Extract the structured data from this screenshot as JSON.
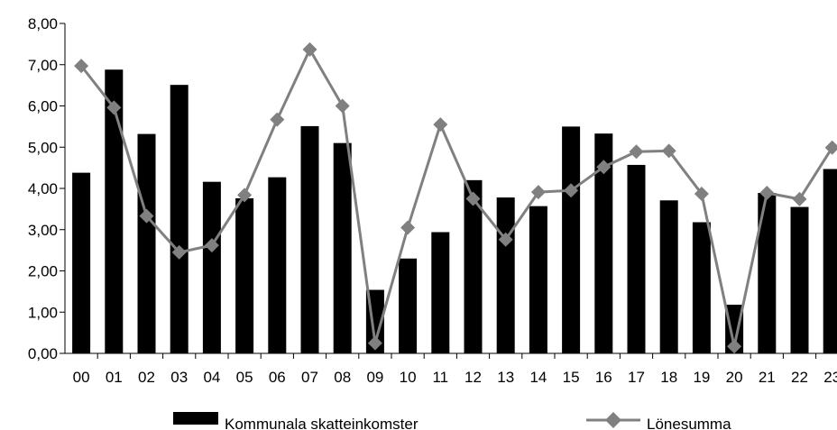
{
  "chart_data": {
    "type": "bar",
    "categories": [
      "00",
      "01",
      "02",
      "03",
      "04",
      "05",
      "06",
      "07",
      "08",
      "09",
      "10",
      "11",
      "12",
      "13",
      "14",
      "15",
      "16",
      "17",
      "18",
      "19",
      "20",
      "21",
      "22",
      "23"
    ],
    "series": [
      {
        "name": "Kommunala skatteinkomster",
        "type": "bar",
        "color": "#000000",
        "values": [
          4.38,
          6.88,
          5.32,
          6.51,
          4.16,
          3.76,
          4.27,
          5.51,
          5.1,
          1.54,
          2.3,
          2.94,
          4.2,
          3.78,
          3.57,
          5.5,
          5.33,
          4.57,
          3.71,
          3.18,
          1.18,
          3.89,
          3.55,
          4.47
        ]
      },
      {
        "name": "Lönesumma",
        "type": "line",
        "color": "#808080",
        "marker": "diamond",
        "values": [
          6.97,
          5.96,
          3.33,
          2.45,
          2.62,
          3.84,
          5.67,
          7.37,
          6.0,
          0.25,
          3.05,
          5.55,
          3.75,
          2.76,
          3.91,
          3.95,
          4.52,
          4.89,
          4.91,
          3.87,
          0.17,
          3.89,
          3.74,
          4.99
        ]
      }
    ],
    "ylim": [
      0,
      8
    ],
    "yticks": [
      "0,00",
      "1,00",
      "2,00",
      "3,00",
      "4,00",
      "5,00",
      "6,00",
      "7,00",
      "8,00"
    ],
    "grid": false,
    "legend_position": "bottom"
  }
}
